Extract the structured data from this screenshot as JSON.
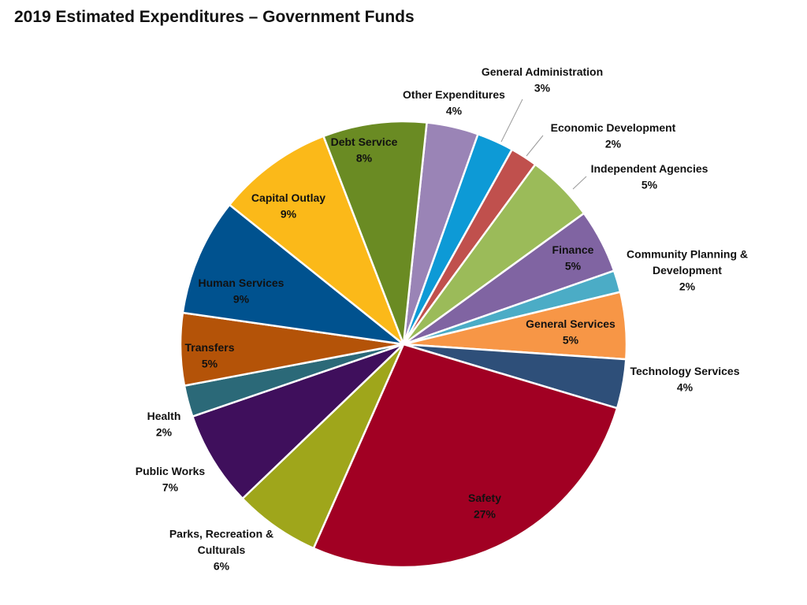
{
  "chart_data": {
    "type": "pie",
    "title": "2019 Estimated Expenditures – Government Funds",
    "start_angle_deg": 6,
    "direction": "clockwise",
    "slices": [
      {
        "label": "Other Expenditures",
        "value_label": "4%",
        "value": 3.8,
        "color": "#9a84b6"
      },
      {
        "label": "General Administration",
        "value_label": "3%",
        "value": 2.7,
        "color": "#0d9ad6"
      },
      {
        "label": "Economic Development",
        "value_label": "2%",
        "value": 2.0,
        "color": "#c0504d"
      },
      {
        "label": "Independent Agencies",
        "value_label": "5%",
        "value": 5.0,
        "color": "#9bbb59"
      },
      {
        "label": "Finance",
        "value_label": "5%",
        "value": 4.7,
        "color": "#8064a2"
      },
      {
        "label": "Community Planning & Development",
        "value_label": "2%",
        "value": 1.6,
        "color": "#4bacc6"
      },
      {
        "label": "General Services",
        "value_label": "5%",
        "value": 4.9,
        "color": "#f79646"
      },
      {
        "label": "Technology Services",
        "value_label": "4%",
        "value": 3.6,
        "color": "#2e4f79"
      },
      {
        "label": "Safety",
        "value_label": "27%",
        "value": 27.3,
        "color": "#a10023"
      },
      {
        "label": "Parks, Recreation & Culturals",
        "value_label": "6%",
        "value": 6.3,
        "color": "#9fa61b"
      },
      {
        "label": "Public Works",
        "value_label": "7%",
        "value": 7.0,
        "color": "#3f0f5c"
      },
      {
        "label": "Health",
        "value_label": "2%",
        "value": 2.3,
        "color": "#2b6978"
      },
      {
        "label": "Transfers",
        "value_label": "5%",
        "value": 5.3,
        "color": "#b45308"
      },
      {
        "label": "Human Services",
        "value_label": "9%",
        "value": 8.6,
        "color": "#00528f"
      },
      {
        "label": "Capital Outlay",
        "value_label": "9%",
        "value": 8.5,
        "color": "#fbb919"
      },
      {
        "label": "Debt Service",
        "value_label": "8%",
        "value": 7.6,
        "color": "#6a8b23"
      }
    ]
  }
}
